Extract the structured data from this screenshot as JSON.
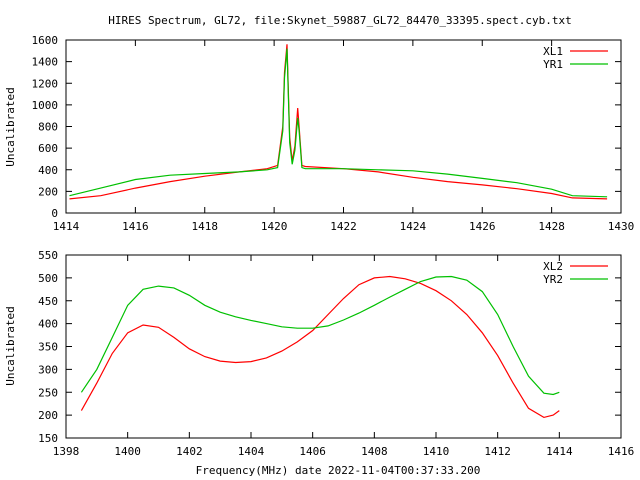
{
  "chart_data": [
    {
      "type": "line",
      "title": "HIRES Spectrum, GL72, file:Skynet_59887_GL72_84470_33395.spect.cyb.txt",
      "xlabel": "",
      "ylabel": "Uncalibrated",
      "xlim": [
        1414,
        1430
      ],
      "ylim": [
        0,
        1600
      ],
      "xticks": [
        1414,
        1416,
        1418,
        1420,
        1422,
        1424,
        1426,
        1428,
        1430
      ],
      "yticks": [
        0,
        200,
        400,
        600,
        800,
        1000,
        1200,
        1400,
        1600
      ],
      "grid": false,
      "legend": "top-right",
      "series": [
        {
          "name": "XL1",
          "color": "#ff0000",
          "x": [
            1414.1,
            1415,
            1416,
            1417,
            1418,
            1419,
            1419.8,
            1420.1,
            1420.25,
            1420.3,
            1420.37,
            1420.45,
            1420.52,
            1420.6,
            1420.68,
            1420.72,
            1420.8,
            1420.9,
            1422,
            1423,
            1424,
            1425,
            1426,
            1427,
            1428,
            1428.6,
            1429.6
          ],
          "y": [
            130,
            160,
            230,
            290,
            340,
            380,
            410,
            440,
            800,
            1300,
            1560,
            700,
            480,
            620,
            970,
            800,
            440,
            430,
            410,
            380,
            330,
            290,
            260,
            225,
            180,
            140,
            130
          ]
        },
        {
          "name": "YR1",
          "color": "#00c000",
          "x": [
            1414.1,
            1415,
            1416,
            1417,
            1418,
            1419,
            1419.8,
            1420.1,
            1420.25,
            1420.3,
            1420.37,
            1420.45,
            1420.52,
            1420.6,
            1420.68,
            1420.72,
            1420.8,
            1420.9,
            1422,
            1423,
            1424,
            1425,
            1426,
            1427,
            1428,
            1428.6,
            1429.6
          ],
          "y": [
            160,
            230,
            310,
            350,
            365,
            380,
            400,
            420,
            760,
            1250,
            1520,
            650,
            450,
            580,
            880,
            760,
            420,
            410,
            410,
            400,
            390,
            360,
            320,
            280,
            220,
            160,
            150
          ]
        }
      ]
    },
    {
      "type": "line",
      "title": "",
      "xlabel": "Frequency(MHz) date 2022-11-04T00:37:33.200",
      "ylabel": "Uncalibrated",
      "xlim": [
        1398,
        1416
      ],
      "ylim": [
        150,
        550
      ],
      "xticks": [
        1398,
        1400,
        1402,
        1404,
        1406,
        1408,
        1410,
        1412,
        1414,
        1416
      ],
      "yticks": [
        150,
        200,
        250,
        300,
        350,
        400,
        450,
        500,
        550
      ],
      "grid": false,
      "legend": "top-right",
      "series": [
        {
          "name": "XL2",
          "color": "#ff0000",
          "x": [
            1398.5,
            1399,
            1399.5,
            1400,
            1400.5,
            1401,
            1401.5,
            1402,
            1402.5,
            1403,
            1403.5,
            1404,
            1404.5,
            1405,
            1405.5,
            1406,
            1406.5,
            1407,
            1407.5,
            1408,
            1408.5,
            1409,
            1409.5,
            1410,
            1410.5,
            1411,
            1411.5,
            1412,
            1412.5,
            1413,
            1413.5,
            1413.8,
            1414
          ],
          "y": [
            210,
            270,
            335,
            380,
            397,
            392,
            370,
            345,
            328,
            318,
            315,
            317,
            325,
            340,
            360,
            385,
            420,
            455,
            485,
            500,
            503,
            498,
            488,
            472,
            450,
            420,
            380,
            330,
            270,
            215,
            195,
            200,
            210
          ]
        },
        {
          "name": "YR2",
          "color": "#00c000",
          "x": [
            1398.5,
            1399,
            1399.5,
            1400,
            1400.5,
            1401,
            1401.5,
            1402,
            1402.5,
            1403,
            1403.5,
            1404,
            1404.5,
            1405,
            1405.5,
            1406,
            1406.5,
            1407,
            1407.5,
            1408,
            1408.5,
            1409,
            1409.5,
            1410,
            1410.5,
            1411,
            1411.5,
            1412,
            1412.5,
            1413,
            1413.5,
            1413.8,
            1414
          ],
          "y": [
            250,
            300,
            370,
            440,
            475,
            482,
            478,
            462,
            440,
            425,
            415,
            407,
            400,
            393,
            390,
            390,
            395,
            408,
            423,
            440,
            458,
            475,
            492,
            502,
            503,
            495,
            470,
            420,
            350,
            285,
            248,
            245,
            250
          ]
        }
      ]
    }
  ]
}
